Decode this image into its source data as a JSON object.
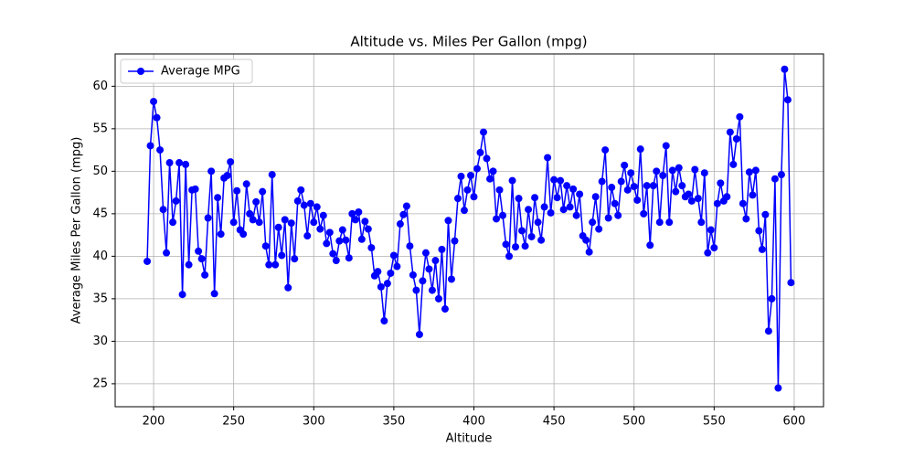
{
  "chart_data": {
    "type": "line",
    "title": "Altitude vs. Miles Per Gallon (mpg)",
    "xlabel": "Altitude",
    "ylabel": "Average Miles Per Gallon (mpg)",
    "x": [
      196,
      198,
      200,
      202,
      204,
      206,
      208,
      210,
      212,
      214,
      216,
      218,
      220,
      222,
      224,
      226,
      228,
      230,
      232,
      234,
      236,
      238,
      240,
      242,
      244,
      246,
      248,
      250,
      252,
      254,
      256,
      258,
      260,
      262,
      264,
      266,
      268,
      270,
      272,
      274,
      276,
      278,
      280,
      282,
      284,
      286,
      288,
      290,
      292,
      294,
      296,
      298,
      300,
      302,
      304,
      306,
      308,
      310,
      312,
      314,
      316,
      318,
      320,
      322,
      324,
      326,
      328,
      330,
      332,
      334,
      336,
      338,
      340,
      342,
      344,
      346,
      348,
      350,
      352,
      354,
      356,
      358,
      360,
      362,
      364,
      366,
      368,
      370,
      372,
      374,
      376,
      378,
      380,
      382,
      384,
      386,
      388,
      390,
      392,
      394,
      396,
      398,
      400,
      402,
      404,
      406,
      408,
      410,
      412,
      414,
      416,
      418,
      420,
      422,
      424,
      426,
      428,
      430,
      432,
      434,
      436,
      438,
      440,
      442,
      444,
      446,
      448,
      450,
      452,
      454,
      456,
      458,
      460,
      462,
      464,
      466,
      468,
      470,
      472,
      474,
      476,
      478,
      480,
      482,
      484,
      486,
      488,
      490,
      492,
      494,
      496,
      498,
      500,
      502,
      504,
      506,
      508,
      510,
      512,
      514,
      516,
      518,
      520,
      522,
      524,
      526,
      528,
      530,
      532,
      534,
      536,
      538,
      540,
      542,
      544,
      546,
      548,
      550,
      552,
      554,
      556,
      558,
      560,
      562,
      564,
      566,
      568,
      570,
      572,
      574,
      576,
      578,
      580,
      582,
      584,
      586,
      588,
      590,
      592,
      594,
      596,
      598
    ],
    "series": [
      {
        "name": "Average MPG",
        "color": "#0000ff",
        "values": [
          39.4,
          53.0,
          58.2,
          56.3,
          52.5,
          45.5,
          40.4,
          51.0,
          44.0,
          46.5,
          51.0,
          35.5,
          50.8,
          39.0,
          47.8,
          47.9,
          40.6,
          39.7,
          37.8,
          44.5,
          50.0,
          35.6,
          46.9,
          42.6,
          49.2,
          49.5,
          51.1,
          44.0,
          47.7,
          43.1,
          42.6,
          48.5,
          45.0,
          44.3,
          46.4,
          44.0,
          47.6,
          41.2,
          39.0,
          49.6,
          39.0,
          43.4,
          40.1,
          44.3,
          36.3,
          43.9,
          39.7,
          46.5,
          47.8,
          46.0,
          42.4,
          46.2,
          44.0,
          45.8,
          43.2,
          44.8,
          41.5,
          42.8,
          40.3,
          39.5,
          41.8,
          43.1,
          41.9,
          39.8,
          45.0,
          44.3,
          45.2,
          42.0,
          44.1,
          43.2,
          41.0,
          37.7,
          38.2,
          36.4,
          32.4,
          36.8,
          38.0,
          40.1,
          38.8,
          43.8,
          44.9,
          45.9,
          41.2,
          37.8,
          36.0,
          30.8,
          37.1,
          40.4,
          38.5,
          36.0,
          39.5,
          35.0,
          40.8,
          33.8,
          44.2,
          37.3,
          41.8,
          46.8,
          49.4,
          45.4,
          47.8,
          49.5,
          47.0,
          50.3,
          52.2,
          54.6,
          51.5,
          49.1,
          50.0,
          44.4,
          47.8,
          44.8,
          41.4,
          40.0,
          48.9,
          41.1,
          46.8,
          43.0,
          41.2,
          45.5,
          42.3,
          46.9,
          44.0,
          41.9,
          45.8,
          51.6,
          45.1,
          49.0,
          46.9,
          48.9,
          45.5,
          48.3,
          45.8,
          47.9,
          44.8,
          47.3,
          42.4,
          41.9,
          40.5,
          44.0,
          47.0,
          43.2,
          48.8,
          52.5,
          44.5,
          48.1,
          46.2,
          44.8,
          48.8,
          50.7,
          47.8,
          49.8,
          48.2,
          46.6,
          52.6,
          45.0,
          48.3,
          41.3,
          48.3,
          50.0,
          44.0,
          49.5,
          53.0,
          44.0,
          50.1,
          47.6,
          50.4,
          48.3,
          47.0,
          47.3,
          46.5,
          50.2,
          46.8,
          44.0,
          49.8,
          40.4,
          43.1,
          41.0,
          46.2,
          48.6,
          46.5,
          47.0,
          54.6,
          50.8,
          53.8,
          56.4,
          46.2,
          44.4,
          49.9,
          47.2,
          50.1,
          43.0,
          40.8,
          44.9,
          31.2,
          35.0,
          49.1,
          24.5,
          49.6,
          62.0,
          58.4,
          36.9
        ]
      }
    ],
    "xlim": [
      176,
      618.3
    ],
    "ylim": [
      22.3,
      63.8
    ],
    "xticks": [
      200,
      250,
      300,
      350,
      400,
      450,
      500,
      550,
      600
    ],
    "yticks": [
      25,
      30,
      35,
      40,
      45,
      50,
      55,
      60
    ],
    "grid": true,
    "legend": "upper left"
  }
}
